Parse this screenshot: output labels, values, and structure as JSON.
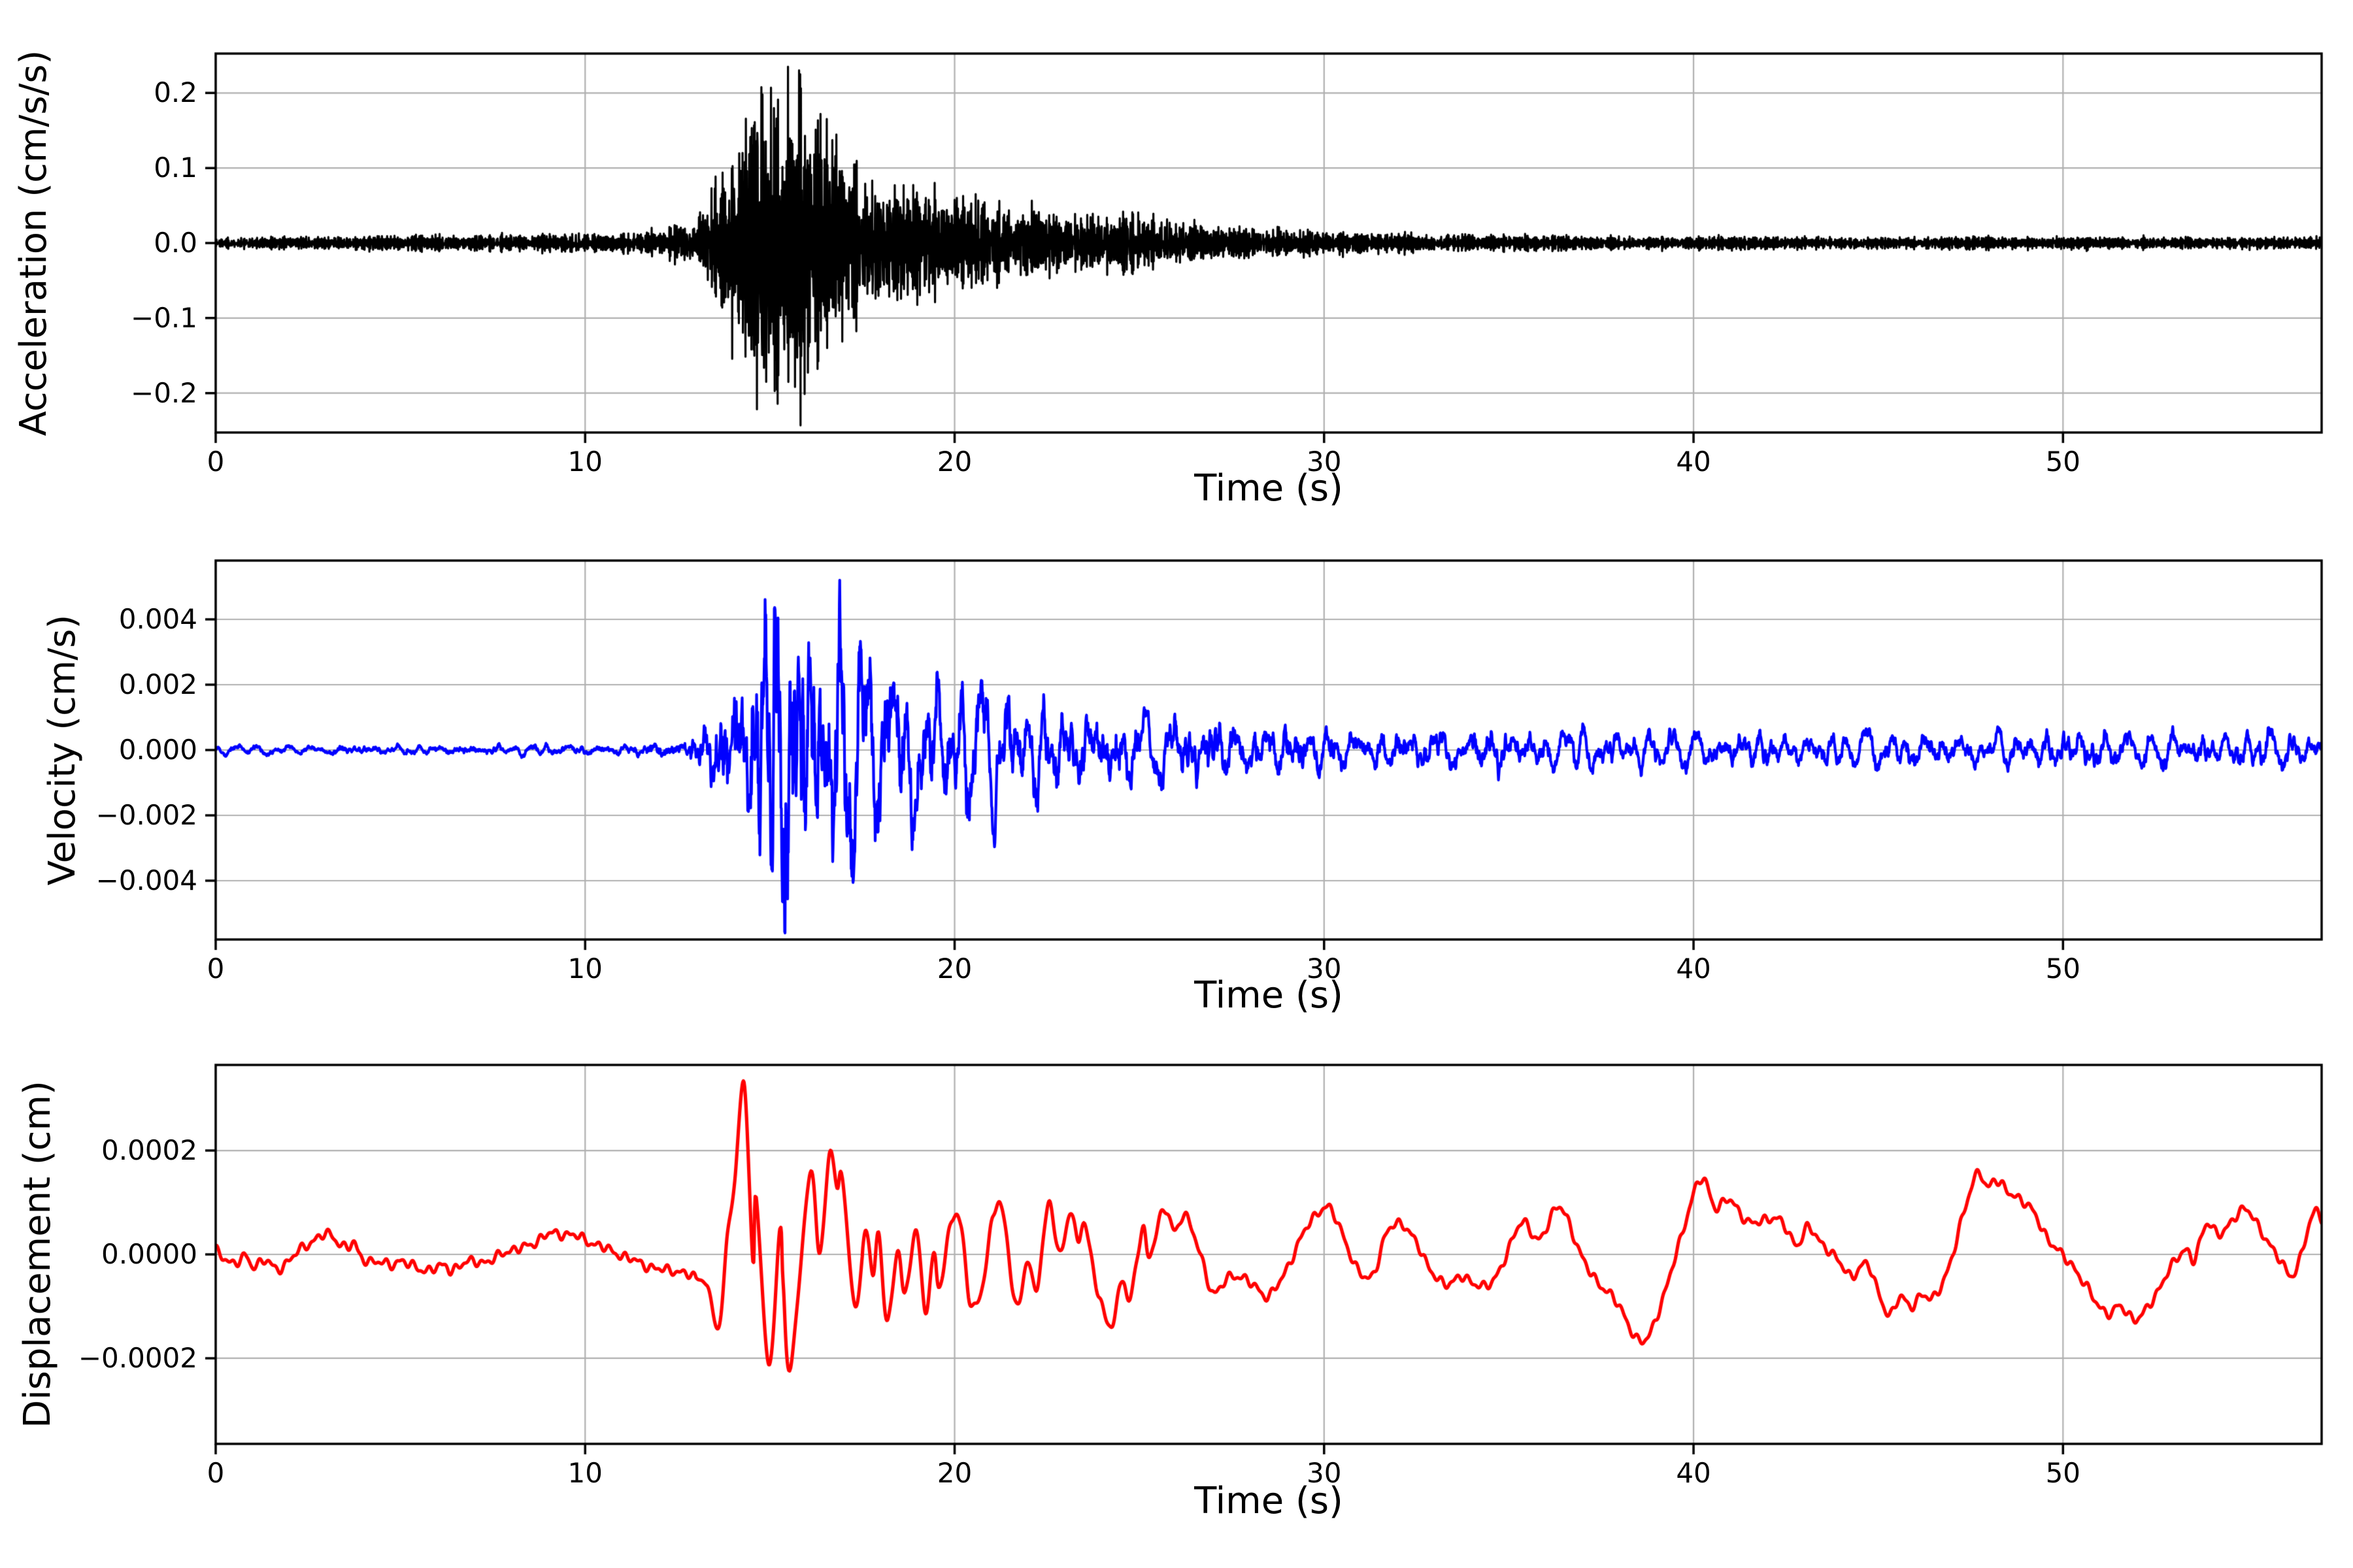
{
  "figure": {
    "background": "#ffffff",
    "grid_color": "#b0b0b0",
    "spine_color": "#000000",
    "n_subplots": 3
  },
  "chart_data": [
    {
      "type": "line",
      "title": "",
      "xlabel": "Time (s)",
      "ylabel": "Acceleration (cm/s/s)",
      "line_color": "#000000",
      "grid": true,
      "xlim": [
        0,
        57
      ],
      "ylim": [
        -0.2525,
        0.2525
      ],
      "xticks": {
        "values": [
          0,
          10,
          20,
          30,
          40,
          50
        ],
        "labels": [
          "0",
          "10",
          "20",
          "30",
          "40",
          "50"
        ]
      },
      "yticks": {
        "values": [
          0.2,
          0.1,
          0.0,
          -0.1,
          -0.2
        ],
        "labels": [
          "0.2",
          "0.1",
          "0.0",
          "−0.1",
          "−0.2"
        ]
      },
      "peak_value": 0.235,
      "trough_value": -0.243,
      "series": {
        "kind": "stochastic-burst",
        "seed": 1337,
        "dt": 0.01,
        "band": "highfreq",
        "envelope": [
          [
            0,
            0.009
          ],
          [
            4,
            0.01
          ],
          [
            8,
            0.012
          ],
          [
            10,
            0.013
          ],
          [
            11,
            0.015
          ],
          [
            12,
            0.02
          ],
          [
            12.8,
            0.03
          ],
          [
            13.3,
            0.06
          ],
          [
            13.7,
            0.11
          ],
          [
            14.2,
            0.19
          ],
          [
            14.8,
            0.245
          ],
          [
            15.7,
            0.235
          ],
          [
            16.4,
            0.18
          ],
          [
            17.2,
            0.14
          ],
          [
            18,
            0.11
          ],
          [
            19,
            0.085
          ],
          [
            20,
            0.07
          ],
          [
            21,
            0.06
          ],
          [
            22,
            0.052
          ],
          [
            23,
            0.045
          ],
          [
            24,
            0.042
          ],
          [
            24.7,
            0.047
          ],
          [
            25.5,
            0.037
          ],
          [
            26.5,
            0.028
          ],
          [
            28,
            0.022
          ],
          [
            29.5,
            0.018
          ],
          [
            31,
            0.015
          ],
          [
            33,
            0.013
          ],
          [
            35,
            0.011
          ],
          [
            38,
            0.01
          ],
          [
            42,
            0.0095
          ],
          [
            46,
            0.009
          ],
          [
            50,
            0.0088
          ],
          [
            57,
            0.0085
          ]
        ]
      }
    },
    {
      "type": "line",
      "title": "",
      "xlabel": "Time (s)",
      "ylabel": "Velocity (cm/s)",
      "line_color": "#0000ff",
      "grid": true,
      "xlim": [
        0,
        57
      ],
      "ylim": [
        -0.0058,
        0.0058
      ],
      "xticks": {
        "values": [
          0,
          10,
          20,
          30,
          40,
          50
        ],
        "labels": [
          "0",
          "10",
          "20",
          "30",
          "40",
          "50"
        ]
      },
      "yticks": {
        "values": [
          0.004,
          0.002,
          0.0,
          -0.002,
          -0.004
        ],
        "labels": [
          "0.004",
          "0.002",
          "0.000",
          "−0.002",
          "−0.004"
        ]
      },
      "peak_value": 0.0052,
      "trough_value": -0.0056,
      "series": {
        "kind": "stochastic-burst",
        "seed": 4242,
        "dt": 0.01,
        "band": "midfreq",
        "envelope": [
          [
            0,
            0.00012
          ],
          [
            8,
            0.00014
          ],
          [
            11,
            0.00016
          ],
          [
            12.5,
            0.00025
          ],
          [
            13.2,
            0.0008
          ],
          [
            13.8,
            0.0022
          ],
          [
            14.5,
            0.0038
          ],
          [
            15.0,
            0.0052
          ],
          [
            15.6,
            0.0054
          ],
          [
            16.3,
            0.004
          ],
          [
            17,
            0.0032
          ],
          [
            18,
            0.0026
          ],
          [
            19,
            0.0021
          ],
          [
            20,
            0.0018
          ],
          [
            21.5,
            0.0015
          ],
          [
            23,
            0.0012
          ],
          [
            25,
            0.001
          ],
          [
            27,
            0.00085
          ],
          [
            29,
            0.0007
          ],
          [
            31,
            0.0006
          ],
          [
            34,
            0.00055
          ],
          [
            37,
            0.0005
          ],
          [
            40,
            0.00048
          ],
          [
            44,
            0.00046
          ],
          [
            48,
            0.00046
          ],
          [
            52,
            0.00044
          ],
          [
            57,
            0.00046
          ]
        ]
      }
    },
    {
      "type": "line",
      "title": "",
      "xlabel": "Time (s)",
      "ylabel": "Displacement (cm)",
      "line_color": "#ff0000",
      "grid": true,
      "xlim": [
        0,
        57
      ],
      "ylim": [
        -0.000365,
        0.000365
      ],
      "xticks": {
        "values": [
          0,
          10,
          20,
          30,
          40,
          50
        ],
        "labels": [
          "0",
          "10",
          "20",
          "30",
          "40",
          "50"
        ]
      },
      "yticks": {
        "values": [
          0.0002,
          0.0,
          -0.0002
        ],
        "labels": [
          "0.0002",
          "0.0000",
          "−0.0002"
        ]
      },
      "peak_value": 0.000331,
      "trough_value": -0.000217,
      "series": {
        "kind": "polyline",
        "jitter_amp": 5.5e-06,
        "points": [
          [
            0,
            7e-06
          ],
          [
            0.5,
            -1.7e-05
          ],
          [
            0.82,
            -5e-06
          ],
          [
            1.0,
            -2.1e-05
          ],
          [
            1.35,
            -1.2e-05
          ],
          [
            1.65,
            -2.9e-05
          ],
          [
            2.0,
            -1e-05
          ],
          [
            2.3,
            9e-06
          ],
          [
            2.6,
            2.5e-05
          ],
          [
            2.83,
            3.5e-05
          ],
          [
            3.1,
            3.7e-05
          ],
          [
            3.35,
            2.2e-05
          ],
          [
            3.57,
            1.4e-05
          ],
          [
            3.75,
            2e-05
          ],
          [
            3.93,
            -5e-06
          ],
          [
            4.34,
            -1.46e-05
          ],
          [
            4.75,
            -1.93e-05
          ],
          [
            4.98,
            -1.23e-05
          ],
          [
            5.3,
            -2.2e-05
          ],
          [
            5.76,
            -3.02e-05
          ],
          [
            6.2,
            -2.17e-05
          ],
          [
            6.4,
            -2.88e-05
          ],
          [
            6.95,
            -1.23e-05
          ],
          [
            7.4,
            -1.5e-05
          ],
          [
            7.8,
            5e-06
          ],
          [
            8.2,
            1e-05
          ],
          [
            8.6,
            2.2e-05
          ],
          [
            9.0,
            3.85e-05
          ],
          [
            9.33,
            3.96e-05
          ],
          [
            9.7,
            3.65e-05
          ],
          [
            10.24,
            2.07e-05
          ],
          [
            10.79,
            4.2e-06
          ],
          [
            11.34,
            -1.23e-05
          ],
          [
            11.98,
            -2.88e-05
          ],
          [
            12.43,
            -3.1e-05
          ],
          [
            12.98,
            -4.52e-05
          ],
          [
            13.3,
            -6e-05
          ],
          [
            13.62,
            -0.000142
          ],
          [
            13.85,
            4e-05
          ],
          [
            14.05,
            0.00014
          ],
          [
            14.3,
            0.000331
          ],
          [
            14.54,
            -1.7e-05
          ],
          [
            14.63,
            0.000114
          ],
          [
            14.97,
            -0.000215
          ],
          [
            15.27,
            4.6e-05
          ],
          [
            15.36,
            -5.4e-05
          ],
          [
            15.56,
            -0.000217
          ],
          [
            16.09,
            0.000156
          ],
          [
            16.35,
            0.0
          ],
          [
            16.62,
            0.000197
          ],
          [
            16.82,
            0.000124
          ],
          [
            16.96,
            0.000153
          ],
          [
            17.3,
            -0.0001
          ],
          [
            17.6,
            4.6e-05
          ],
          [
            17.79,
            -3.7e-05
          ],
          [
            17.94,
            3.6e-05
          ],
          [
            18.18,
            -0.000129
          ],
          [
            18.47,
            1.2e-05
          ],
          [
            18.66,
            -8e-05
          ],
          [
            18.96,
            4.6e-05
          ],
          [
            19.2,
            -0.000105
          ],
          [
            19.44,
            0.0
          ],
          [
            19.59,
            -6.6e-05
          ],
          [
            19.93,
            7e-05
          ],
          [
            20.17,
            5.6e-05
          ],
          [
            20.41,
            -9e-05
          ],
          [
            20.7,
            -7.6e-05
          ],
          [
            21.04,
            7e-05
          ],
          [
            21.29,
            8.5e-05
          ],
          [
            21.68,
            -0.0001
          ],
          [
            21.97,
            -1.2e-05
          ],
          [
            22.21,
            -6.6e-05
          ],
          [
            22.55,
            9.5e-05
          ],
          [
            22.84,
            0.0
          ],
          [
            23.13,
            8.5e-05
          ],
          [
            23.33,
            2.2e-05
          ],
          [
            23.52,
            5.6e-05
          ],
          [
            23.91,
            -8e-05
          ],
          [
            24.25,
            -0.000139
          ],
          [
            24.54,
            -4.2e-05
          ],
          [
            24.74,
            -9e-05
          ],
          [
            25.08,
            4.6e-05
          ],
          [
            25.27,
            0.0
          ],
          [
            25.66,
            8.5e-05
          ],
          [
            25.95,
            4.6e-05
          ],
          [
            26.24,
            7.5e-05
          ],
          [
            26.73,
            -1.7e-05
          ],
          [
            27.02,
            -7.6e-05
          ],
          [
            27.5,
            -4e-05
          ],
          [
            28.1,
            -6e-05
          ],
          [
            28.5,
            -8e-05
          ],
          [
            28.9,
            -4e-05
          ],
          [
            29.3,
            2e-05
          ],
          [
            29.7,
            7e-05
          ],
          [
            30.1,
            9e-05
          ],
          [
            30.5,
            4e-05
          ],
          [
            30.9,
            -3e-05
          ],
          [
            31.3,
            -4e-05
          ],
          [
            31.7,
            4e-05
          ],
          [
            32.1,
            6e-05
          ],
          [
            32.5,
            2e-05
          ],
          [
            32.9,
            -3e-05
          ],
          [
            33.3,
            -6e-05
          ],
          [
            33.7,
            -4e-05
          ],
          [
            34.1,
            -6e-05
          ],
          [
            34.7,
            -4e-05
          ],
          [
            35.3,
            6e-05
          ],
          [
            35.8,
            3e-05
          ],
          [
            36.4,
            9e-05
          ],
          [
            37.0,
            -1e-05
          ],
          [
            37.5,
            -6e-05
          ],
          [
            38.0,
            -0.0001
          ],
          [
            38.6,
            -0.00017
          ],
          [
            39.2,
            -8e-05
          ],
          [
            39.6,
            2e-05
          ],
          [
            40.2,
            0.000145
          ],
          [
            40.6,
            9e-05
          ],
          [
            41.0,
            0.000105
          ],
          [
            41.5,
            6e-05
          ],
          [
            42.0,
            7e-05
          ],
          [
            42.4,
            6e-05
          ],
          [
            42.8,
            2e-05
          ],
          [
            43.1,
            5e-05
          ],
          [
            43.5,
            2e-05
          ],
          [
            44.0,
            -2e-05
          ],
          [
            44.3,
            -4e-05
          ],
          [
            44.7,
            -2e-05
          ],
          [
            45.0,
            -7e-05
          ],
          [
            45.3,
            -0.00012
          ],
          [
            45.6,
            -8e-05
          ],
          [
            45.9,
            -0.0001
          ],
          [
            46.2,
            -8e-05
          ],
          [
            46.5,
            -8e-05
          ],
          [
            46.9,
            -3e-05
          ],
          [
            47.3,
            8e-05
          ],
          [
            47.7,
            0.000155
          ],
          [
            47.95,
            0.00013
          ],
          [
            48.15,
            0.000145
          ],
          [
            48.5,
            0.00012
          ],
          [
            48.8,
            0.00011
          ],
          [
            49.2,
            8e-05
          ],
          [
            49.6,
            3e-05
          ],
          [
            49.95,
            0.0
          ],
          [
            50.25,
            -2e-05
          ],
          [
            50.6,
            -6e-05
          ],
          [
            51.0,
            -0.0001
          ],
          [
            51.3,
            -0.000115
          ],
          [
            51.55,
            -0.0001
          ],
          [
            52.0,
            -0.000125
          ],
          [
            52.4,
            -9e-05
          ],
          [
            52.8,
            -4e-05
          ],
          [
            53.3,
            1e-05
          ],
          [
            53.55,
            -1e-05
          ],
          [
            53.9,
            6e-05
          ],
          [
            54.2,
            4e-05
          ],
          [
            54.45,
            5e-05
          ],
          [
            54.9,
            9e-05
          ],
          [
            55.3,
            5e-05
          ],
          [
            55.7,
            1e-05
          ],
          [
            56.2,
            -4e-05
          ],
          [
            56.6,
            4e-05
          ],
          [
            56.85,
            8.5e-05
          ],
          [
            57.0,
            7e-05
          ]
        ]
      }
    }
  ]
}
